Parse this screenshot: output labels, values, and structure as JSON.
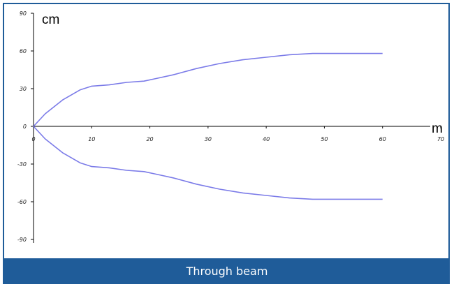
{
  "chart_data": {
    "type": "line",
    "title": "Through beam",
    "xlabel": "m",
    "ylabel": "cm",
    "xlim": [
      0,
      70
    ],
    "ylim": [
      -90,
      90
    ],
    "x_ticks": [
      "0",
      "10",
      "20",
      "30",
      "40",
      "50",
      "60",
      "70"
    ],
    "y_ticks": [
      "90",
      "60",
      "30",
      "0",
      "-30",
      "-60",
      "-90"
    ],
    "grid": false,
    "legend": "none",
    "line_color": "#7b7be8",
    "series": [
      {
        "x": [
          0,
          2,
          5,
          8,
          10,
          13,
          16,
          19,
          21,
          24,
          28,
          32,
          36,
          40,
          44,
          48,
          50,
          55,
          60
        ],
        "y": [
          0,
          10,
          21,
          29,
          32,
          33,
          35,
          36,
          38,
          41,
          46,
          50,
          53,
          55,
          57,
          58,
          58,
          58,
          58
        ]
      },
      {
        "x": [
          0,
          2,
          5,
          8,
          10,
          13,
          16,
          19,
          21,
          24,
          28,
          32,
          36,
          40,
          44,
          48,
          50,
          55,
          60
        ],
        "y": [
          0,
          -10,
          -21,
          -29,
          -32,
          -33,
          -35,
          -36,
          -38,
          -41,
          -46,
          -50,
          -53,
          -55,
          -57,
          -58,
          -58,
          -58,
          -58
        ]
      }
    ]
  },
  "colors": {
    "frame": "#1f5c99",
    "caption_bg": "#1f5c99"
  }
}
